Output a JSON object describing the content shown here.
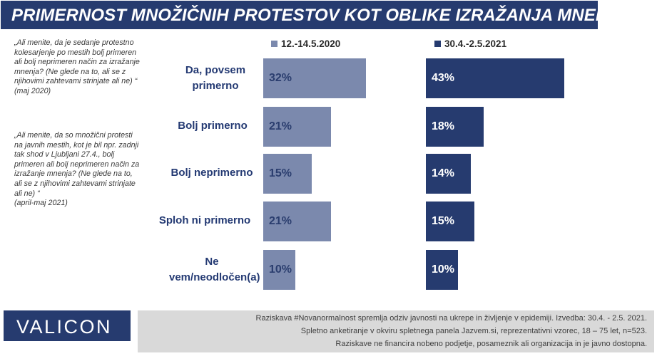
{
  "title": "PRIMERNOST MNOŽIČNIH PROTESTOV KOT OBLIKE IZRAŽANJA MNENJA",
  "questions": [
    {
      "text": "„Ali menite, da je sedanje protestno kolesarjenje po mestih bolj primeren ali bolj neprimeren način za izražanje mnenja? (Ne glede na to, ali se z njihovimi zahtevami strinjate ali ne) “",
      "period": "(maj 2020)"
    },
    {
      "text": "„Ali menite, da so množični protesti na javnih mestih, kot je bil npr. zadnji tak shod v Ljubljani 27.4., bolj primeren ali bolj neprimeren način za izražanje mnenja? (Ne glede na to, ali se z njihovimi zahtevami strinjate ali ne) “",
      "period": "(april-maj 2021)"
    }
  ],
  "chart_data": {
    "type": "bar",
    "orientation": "horizontal",
    "layout": "side-by-side panels",
    "categories": [
      "Da, povsem primerno",
      "Bolj primerno",
      "Bolj neprimerno",
      "Sploh ni primerno",
      "Ne vem/neodločen(a)"
    ],
    "series": [
      {
        "name": "12.-14.5.2020",
        "values": [
          32,
          21,
          15,
          21,
          10
        ],
        "labels": [
          "32%",
          "21%",
          "15%",
          "21%",
          "10%"
        ],
        "color": "#7b89ad",
        "label_color": "#2a3d6e"
      },
      {
        "name": "30.4.-2.5.2021",
        "values": [
          43,
          18,
          14,
          15,
          10
        ],
        "labels": [
          "43%",
          "18%",
          "14%",
          "15%",
          "10%"
        ],
        "color": "#263b6f",
        "label_color": "#ffffff"
      }
    ],
    "unit": "%",
    "legend_position": "top",
    "grid": false
  },
  "logo": "VALICON",
  "footer": [
    "Raziskava #Novanormalnost spremlja odziv javnosti na ukrepe in življenje v epidemiji. Izvedba: 30.4. - 2.5. 2021.",
    "Spletno anketiranje v okviru spletnega panela Jazvem.si, reprezentativni vzorec, 18 – 75 let, n=523.",
    "Raziskave ne financira nobeno podjetje, posameznik ali organizacija in je javno dostopna."
  ]
}
